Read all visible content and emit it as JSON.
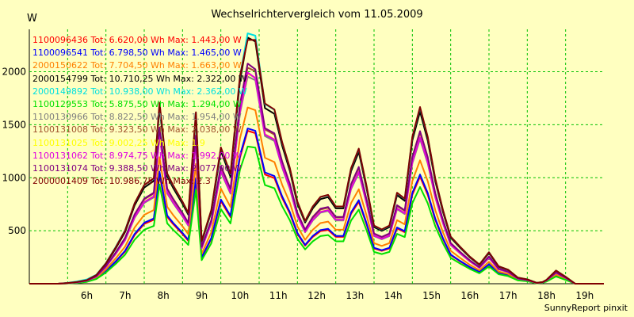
{
  "chart_data": {
    "type": "line",
    "title": "Wechselrichtervergleich vom 11.05.2009",
    "ylabel": "W",
    "xlim": [
      5,
      20
    ],
    "ylim": [
      0,
      2400
    ],
    "yticks": [
      500,
      1000,
      1500,
      2000
    ],
    "xticks": [
      "6h",
      "7h",
      "8h",
      "9h",
      "10h",
      "11h",
      "12h",
      "13h",
      "14h",
      "15h",
      "16h",
      "17h",
      "18h",
      "19h"
    ],
    "grid": true,
    "legend_position": "top-left",
    "footer": "SunnyReport pinxit",
    "x": [
      5.0,
      5.75,
      6.0,
      6.25,
      6.5,
      6.75,
      7.0,
      7.25,
      7.5,
      7.75,
      8.0,
      8.25,
      8.4,
      8.6,
      8.75,
      9.0,
      9.15,
      9.35,
      9.5,
      9.75,
      10.0,
      10.25,
      10.5,
      10.7,
      10.9,
      11.15,
      11.4,
      11.6,
      11.8,
      12.0,
      12.2,
      12.4,
      12.6,
      12.8,
      13.0,
      13.2,
      13.4,
      13.6,
      13.8,
      14.0,
      14.2,
      14.4,
      14.6,
      14.8,
      15.0,
      15.2,
      15.4,
      15.6,
      15.8,
      16.0,
      16.25,
      16.5,
      16.75,
      17.0,
      17.25,
      17.5,
      17.75,
      18.0,
      18.25,
      18.4,
      18.5,
      18.75,
      19.0,
      19.25,
      19.5,
      20.0
    ],
    "legend": [
      {
        "id": "1100096436",
        "tot": "6.620,00",
        "max": "1.443,00"
      },
      {
        "id": "1100096541",
        "tot": "6.798,50",
        "max": "1.465,00"
      },
      {
        "id": "2000150622",
        "tot": "7.704,50",
        "max": "1.663,00"
      },
      {
        "id": "2000154799",
        "tot": "10.710,25",
        "max": "2.322,00"
      },
      {
        "id": "2000149892",
        "tot": "10.938,00",
        "max": "2.362,00"
      },
      {
        "id": "1100129553",
        "tot": "5.875,50",
        "max": "1.294,00"
      },
      {
        "id": "1100130966",
        "tot": "8.822,50",
        "max": "1.954,00"
      },
      {
        "id": "1100131008",
        "tot": "9.323,50",
        "max": "2.038,00"
      },
      {
        "id": "1100131025",
        "tot": "9.002,25",
        "max": "1.9"
      },
      {
        "id": "1100131062",
        "tot": "8.974,75",
        "max": "1.992,00"
      },
      {
        "id": "1100131074",
        "tot": "9.388,50",
        "max": "2.077,00"
      },
      {
        "id": "2000001409",
        "tot": "10.986,75",
        "max": "2.3"
      }
    ],
    "legend_text": {
      "tot": "Tot:",
      "wh": "Wh",
      "max": "Max:",
      "w": "W"
    },
    "series": [
      {
        "color": "#FF0000",
        "values": [
          0,
          0,
          4,
          10,
          20,
          50,
          117,
          206,
          303,
          460,
          564,
          603,
          1035,
          630,
          564,
          469,
          405,
          980,
          245,
          421,
          779,
          628,
          1189,
          1443,
          1420,
          1030,
          996,
          810,
          663,
          469,
          359,
          442,
          496,
          508,
          442,
          442,
          660,
          773,
          564,
          332,
          310,
          332,
          520,
          486,
          840,
          1010,
          840,
          600,
          420,
          270,
          210,
          155,
          110,
          180,
          100,
          80,
          35,
          25,
          5,
          10,
          22,
          75,
          40,
          0,
          0,
          0
        ]
      },
      {
        "color": "#0000FF",
        "values": [
          0,
          0,
          4,
          10,
          20,
          50,
          119,
          210,
          310,
          470,
          575,
          615,
          1058,
          644,
          576,
          479,
          414,
          995,
          250,
          430,
          795,
          641,
          1210,
          1465,
          1442,
          1050,
          1015,
          825,
          676,
          479,
          366,
          451,
          506,
          518,
          451,
          451,
          673,
          788,
          576,
          339,
          316,
          339,
          531,
          496,
          857,
          1030,
          857,
          612,
          428,
          275,
          214,
          158,
          112,
          184,
          102,
          82,
          36,
          26,
          5,
          10,
          22,
          77,
          41,
          0,
          0,
          0
        ]
      },
      {
        "color": "#FF8000",
        "values": [
          0,
          0,
          5,
          12,
          23,
          57,
          135,
          238,
          350,
          531,
          650,
          695,
          1193,
          726,
          650,
          541,
          467,
          1130,
          282,
          485,
          898,
          724,
          1371,
          1663,
          1637,
          1188,
          1148,
          934,
          764,
          541,
          414,
          509,
          572,
          586,
          509,
          509,
          761,
          891,
          650,
          383,
          357,
          383,
          600,
          560,
          968,
          1164,
          968,
          692,
          484,
          311,
          242,
          179,
          127,
          207,
          115,
          92,
          40,
          29,
          6,
          12,
          25,
          86,
          46,
          0,
          0,
          0
        ]
      },
      {
        "color": "#000000",
        "values": [
          0,
          0,
          7,
          16,
          33,
          80,
          188,
          331,
          488,
          740,
          907,
          970,
          1665,
          1013,
          907,
          754,
          651,
          1577,
          394,
          677,
          1253,
          1010,
          1912,
          2322,
          2285,
          1657,
          1602,
          1303,
          1066,
          754,
          577,
          711,
          798,
          817,
          711,
          711,
          1062,
          1243,
          907,
          534,
          499,
          534,
          836,
          782,
          1351,
          1625,
          1351,
          965,
          676,
          434,
          338,
          249,
          177,
          290,
          161,
          129,
          56,
          40,
          8,
          16,
          35,
          121,
          64,
          0,
          0,
          0
        ]
      },
      {
        "color": "#00E0E0",
        "values": [
          0,
          0,
          8,
          22,
          40,
          85,
          195,
          345,
          505,
          760,
          930,
          990,
          1700,
          1035,
          928,
          772,
          667,
          1612,
          402,
          692,
          1282,
          1033,
          1956,
          2362,
          2340,
          1695,
          1640,
          1333,
          1091,
          772,
          591,
          728,
          817,
          836,
          728,
          728,
          1086,
          1272,
          928,
          546,
          510,
          546,
          856,
          800,
          1383,
          1663,
          1383,
          987,
          692,
          444,
          346,
          255,
          181,
          297,
          165,
          132,
          58,
          41,
          8,
          16,
          36,
          124,
          66,
          0,
          0,
          0
        ]
      },
      {
        "color": "#00E000",
        "values": [
          0,
          0,
          3,
          8,
          17,
          44,
          106,
          186,
          274,
          416,
          510,
          545,
          936,
          570,
          510,
          424,
          366,
          886,
          222,
          381,
          704,
          568,
          1075,
          1294,
          1284,
          931,
          900,
          732,
          599,
          424,
          324,
          400,
          449,
          459,
          400,
          400,
          597,
          699,
          510,
          300,
          280,
          300,
          470,
          440,
          760,
          913,
          760,
          542,
          380,
          244,
          190,
          140,
          99,
          163,
          90,
          72,
          32,
          23,
          4,
          9,
          20,
          68,
          36,
          0,
          0,
          0
        ]
      },
      {
        "color": "#808080",
        "values": [
          0,
          0,
          6,
          14,
          28,
          67,
          158,
          278,
          410,
          622,
          762,
          815,
          1399,
          851,
          762,
          634,
          547,
          1325,
          331,
          569,
          1053,
          849,
          1607,
          1954,
          1920,
          1393,
          1346,
          1095,
          896,
          634,
          485,
          597,
          670,
          687,
          597,
          597,
          892,
          1045,
          762,
          449,
          419,
          449,
          703,
          657,
          1135,
          1365,
          1135,
          811,
          568,
          365,
          284,
          210,
          149,
          243,
          135,
          108,
          47,
          34,
          7,
          14,
          30,
          101,
          54,
          0,
          0,
          0
        ]
      },
      {
        "color": "#A0522D",
        "values": [
          0,
          0,
          6,
          15,
          29,
          70,
          165,
          291,
          428,
          649,
          796,
          851,
          1461,
          889,
          796,
          662,
          571,
          1384,
          346,
          594,
          1100,
          886,
          1678,
          2038,
          2005,
          1455,
          1406,
          1144,
          936,
          662,
          507,
          624,
          700,
          717,
          624,
          624,
          932,
          1091,
          796,
          469,
          438,
          469,
          734,
          686,
          1186,
          1426,
          1186,
          847,
          593,
          381,
          296,
          219,
          155,
          254,
          141,
          113,
          49,
          35,
          7,
          14,
          31,
          106,
          56,
          0,
          0,
          0
        ]
      },
      {
        "color": "#FFFF00",
        "values": [
          0,
          0,
          6,
          14,
          28,
          68,
          160,
          282,
          415,
          630,
          772,
          826,
          1417,
          862,
          772,
          642,
          554,
          1342,
          335,
          576,
          1067,
          860,
          1628,
          1978,
          1945,
          1411,
          1364,
          1109,
          908,
          642,
          491,
          605,
          679,
          696,
          605,
          605,
          904,
          1058,
          772,
          455,
          425,
          455,
          712,
          665,
          1150,
          1383,
          1150,
          821,
          575,
          369,
          287,
          212,
          151,
          247,
          137,
          110,
          48,
          34,
          7,
          14,
          30,
          103,
          55,
          0,
          0,
          0
        ]
      },
      {
        "color": "#E000E0",
        "values": [
          0,
          0,
          6,
          14,
          28,
          68,
          160,
          281,
          414,
          628,
          770,
          823,
          1413,
          860,
          770,
          640,
          553,
          1339,
          335,
          575,
          1064,
          858,
          1624,
          1992,
          1940,
          1407,
          1360,
          1106,
          905,
          640,
          490,
          604,
          677,
          694,
          604,
          604,
          902,
          1055,
          770,
          454,
          424,
          454,
          710,
          664,
          1147,
          1380,
          1147,
          819,
          574,
          368,
          287,
          212,
          150,
          246,
          137,
          110,
          48,
          34,
          7,
          14,
          30,
          103,
          55,
          0,
          0,
          0
        ]
      },
      {
        "color": "#800080",
        "values": [
          0,
          0,
          6,
          15,
          29,
          71,
          167,
          293,
          432,
          655,
          803,
          859,
          1474,
          897,
          803,
          668,
          576,
          1396,
          349,
          599,
          1110,
          895,
          1693,
          2077,
          2023,
          1467,
          1418,
          1154,
          944,
          668,
          511,
          630,
          707,
          724,
          630,
          630,
          940,
          1101,
          803,
          473,
          442,
          473,
          741,
          692,
          1196,
          1439,
          1196,
          854,
          599,
          384,
          299,
          221,
          157,
          257,
          143,
          114,
          50,
          36,
          7,
          14,
          32,
          107,
          57,
          0,
          0,
          0
        ]
      },
      {
        "color": "#800000",
        "values": [
          0,
          0,
          7,
          17,
          34,
          82,
          193,
          340,
          500,
          759,
          931,
          995,
          1708,
          1040,
          931,
          774,
          668,
          1618,
          404,
          695,
          1286,
          1037,
          1961,
          2300,
          2300,
          1700,
          1643,
          1337,
          1094,
          774,
          592,
          729,
          819,
          838,
          729,
          729,
          1090,
          1275,
          931,
          548,
          512,
          548,
          858,
          802,
          1386,
          1667,
          1386,
          990,
          694,
          445,
          347,
          256,
          182,
          297,
          165,
          132,
          58,
          41,
          8,
          16,
          36,
          124,
          66,
          0,
          0,
          0
        ]
      }
    ]
  }
}
